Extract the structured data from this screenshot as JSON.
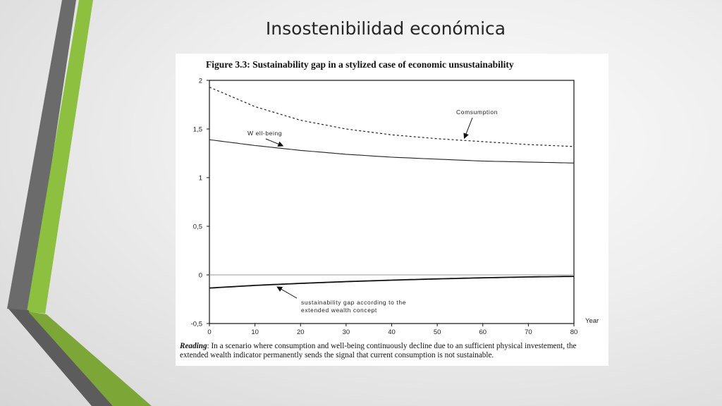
{
  "slide": {
    "title": "Insostenibilidad económica"
  },
  "figure": {
    "title": "Figure 3.3: Sustainability gap in a stylized case of economic unsustainability",
    "reading_label": "Reading",
    "reading_text": ": In a scenario where consumption and well-being continuously decline due to an sufficient physical investement, the extended wealth indicator permanently sends the signal that current consumption is not sustainable."
  },
  "chart_data": {
    "type": "line",
    "xlabel": "Year",
    "ylabel": "",
    "xlim": [
      0,
      80
    ],
    "ylim": [
      -0.5,
      2
    ],
    "xticks": [
      0,
      10,
      20,
      30,
      40,
      50,
      60,
      70,
      80
    ],
    "yticks": [
      -0.5,
      0,
      0.5,
      1,
      1.5,
      2
    ],
    "ytick_labels": [
      "-0,5",
      "0",
      "0,5",
      "1",
      "1,5",
      "2"
    ],
    "grid": false,
    "x": [
      0,
      10,
      20,
      30,
      40,
      50,
      60,
      70,
      80
    ],
    "series": [
      {
        "name": "Consumption",
        "style": "dashed",
        "color": "#222222",
        "values": [
          1.93,
          1.73,
          1.59,
          1.5,
          1.44,
          1.4,
          1.37,
          1.34,
          1.32
        ]
      },
      {
        "name": "Well-being",
        "style": "solid",
        "color": "#222222",
        "values": [
          1.39,
          1.33,
          1.28,
          1.24,
          1.21,
          1.19,
          1.17,
          1.16,
          1.15
        ]
      },
      {
        "name": "sustainability gap according to the extended wealth concept",
        "style": "solid-thick",
        "color": "#111111",
        "values": [
          -0.135,
          -0.108,
          -0.087,
          -0.069,
          -0.054,
          -0.041,
          -0.03,
          -0.021,
          -0.015
        ]
      }
    ],
    "reference_line": {
      "y": 0,
      "color": "#9a9a9a"
    },
    "annotations": [
      {
        "label_lines": [
          "Comsumption"
        ],
        "points_to_series": 0,
        "x": 56
      },
      {
        "label_lines": [
          "W ell-being"
        ],
        "points_to_series": 1,
        "x": 16
      },
      {
        "label_lines": [
          "sustainability gap according to the",
          "extended wealth concept"
        ],
        "points_to_series": 2,
        "x": 15
      }
    ]
  },
  "decor": {
    "accent_green": "#8dc03f",
    "accent_gray": "#6b6b6b"
  }
}
